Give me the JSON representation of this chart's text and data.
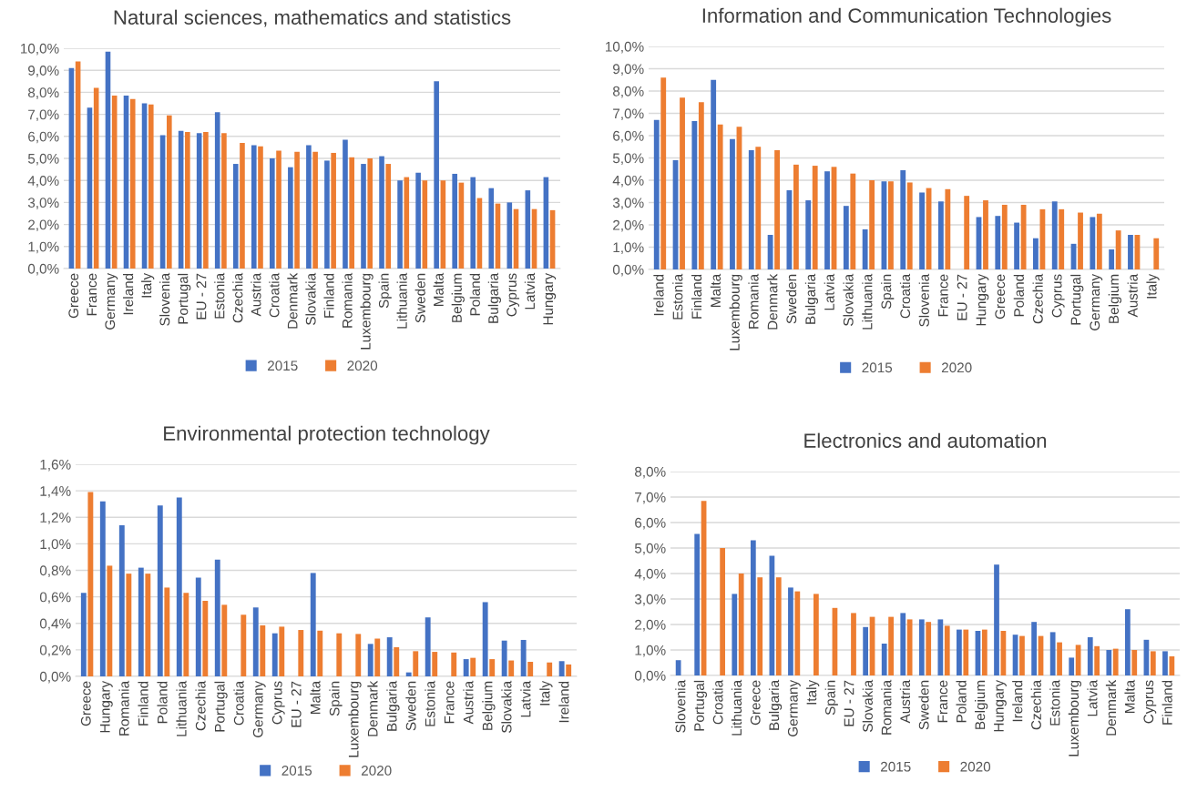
{
  "chart_data": [
    {
      "type": "bar",
      "title": "Natural sciences, mathematics and statistics",
      "categories": [
        "Greece",
        "France",
        "Germany",
        "Ireland",
        "Italy",
        "Slovenia",
        "Portugal",
        "EU - 27",
        "Estonia",
        "Czechia",
        "Austria",
        "Croatia",
        "Denmark",
        "Slovakia",
        "Finland",
        "Romania",
        "Luxembourg",
        "Spain",
        "Lithuania",
        "Sweden",
        "Malta",
        "Belgium",
        "Poland",
        "Bulgaria",
        "Cyprus",
        "Latvia",
        "Hungary"
      ],
      "series": [
        {
          "name": "2015",
          "color": "#4472c4",
          "values": [
            9.1,
            7.3,
            9.85,
            7.85,
            7.5,
            6.05,
            6.25,
            6.15,
            7.1,
            4.75,
            5.6,
            5.0,
            4.6,
            5.6,
            4.9,
            5.85,
            4.75,
            5.1,
            4.0,
            4.35,
            8.5,
            4.3,
            4.15,
            3.65,
            3.0,
            3.55,
            4.15
          ]
        },
        {
          "name": "2020",
          "color": "#ed7d31",
          "values": [
            9.4,
            8.2,
            7.85,
            7.7,
            7.45,
            6.95,
            6.2,
            6.2,
            6.15,
            5.7,
            5.55,
            5.35,
            5.3,
            5.3,
            5.25,
            5.05,
            5.0,
            4.75,
            4.15,
            4.0,
            4.0,
            3.9,
            3.2,
            2.95,
            2.7,
            2.7,
            2.65
          ]
        }
      ],
      "ylim": [
        0,
        10
      ],
      "yticks": [
        {
          "value": 0,
          "label": "0,0%"
        },
        {
          "value": 1,
          "label": "1,0%"
        },
        {
          "value": 2,
          "label": "2,0%"
        },
        {
          "value": 3,
          "label": "3,0%"
        },
        {
          "value": 4,
          "label": "4,0%"
        },
        {
          "value": 5,
          "label": "5,0%"
        },
        {
          "value": 6,
          "label": "6,0%"
        },
        {
          "value": 7,
          "label": "7,0%"
        },
        {
          "value": 8,
          "label": "8,0%"
        },
        {
          "value": 9,
          "label": "9,0%"
        },
        {
          "value": 10,
          "label": "10,0%"
        }
      ],
      "grid": "y",
      "legend": "bottom"
    },
    {
      "type": "bar",
      "title": "Information and Communication Technologies",
      "categories": [
        "Ireland",
        "Estonia",
        "Finland",
        "Malta",
        "Luxembourg",
        "Romania",
        "Denmark",
        "Sweden",
        "Bulgaria",
        "Latvia",
        "Slovakia",
        "Lithuania",
        "Spain",
        "Croatia",
        "Slovenia",
        "France",
        "EU - 27",
        "Hungary",
        "Greece",
        "Poland",
        "Czechia",
        "Cyprus",
        "Portugal",
        "Germany",
        "Belgium",
        "Austria",
        "Italy"
      ],
      "series": [
        {
          "name": "2015",
          "color": "#4472c4",
          "values": [
            6.7,
            4.9,
            6.65,
            8.5,
            5.85,
            5.35,
            1.55,
            3.55,
            3.1,
            4.4,
            2.85,
            1.8,
            3.95,
            4.45,
            3.45,
            3.05,
            null,
            2.35,
            2.4,
            2.1,
            1.4,
            3.05,
            1.15,
            2.35,
            0.9,
            1.55,
            null
          ]
        },
        {
          "name": "2020",
          "color": "#ed7d31",
          "values": [
            8.6,
            7.7,
            7.5,
            6.5,
            6.4,
            5.5,
            5.35,
            4.7,
            4.65,
            4.6,
            4.3,
            4.0,
            3.95,
            3.9,
            3.65,
            3.6,
            3.3,
            3.1,
            2.9,
            2.9,
            2.7,
            2.7,
            2.55,
            2.5,
            1.75,
            1.55,
            1.4
          ]
        }
      ],
      "ylim": [
        0,
        10
      ],
      "yticks": [
        {
          "value": 0,
          "label": "0,0%"
        },
        {
          "value": 1,
          "label": "1,0%"
        },
        {
          "value": 2,
          "label": "2,0%"
        },
        {
          "value": 3,
          "label": "3,0%"
        },
        {
          "value": 4,
          "label": "4,0%"
        },
        {
          "value": 5,
          "label": "5,0%"
        },
        {
          "value": 6,
          "label": "6,0%"
        },
        {
          "value": 7,
          "label": "7,0%"
        },
        {
          "value": 8,
          "label": "8,0%"
        },
        {
          "value": 9,
          "label": "9,0%"
        },
        {
          "value": 10,
          "label": "10,0%"
        }
      ],
      "grid": "y",
      "legend": "bottom"
    },
    {
      "type": "bar",
      "title": "Environmental protection technology",
      "categories": [
        "Greece",
        "Hungary",
        "Romania",
        "Finland",
        "Poland",
        "Lithuania",
        "Czechia",
        "Portugal",
        "Croatia",
        "Germany",
        "Cyprus",
        "EU - 27",
        "Malta",
        "Spain",
        "Luxembourg",
        "Denmark",
        "Bulgaria",
        "Sweden",
        "Estonia",
        "France",
        "Austria",
        "Belgium",
        "Slovakia",
        "Latvia",
        "Italy",
        "Ireland"
      ],
      "series": [
        {
          "name": "2015",
          "color": "#4472c4",
          "values": [
            0.63,
            1.32,
            1.14,
            0.82,
            1.29,
            1.35,
            0.745,
            0.88,
            null,
            0.52,
            0.325,
            null,
            0.78,
            null,
            null,
            0.245,
            0.295,
            0.03,
            0.445,
            null,
            0.13,
            0.56,
            0.27,
            0.275,
            null,
            0.115
          ]
        },
        {
          "name": "2020",
          "color": "#ed7d31",
          "values": [
            1.39,
            0.835,
            0.775,
            0.775,
            0.67,
            0.63,
            0.57,
            0.54,
            0.465,
            0.385,
            0.375,
            0.35,
            0.345,
            0.325,
            0.32,
            0.285,
            0.22,
            0.19,
            0.185,
            0.18,
            0.14,
            0.13,
            0.12,
            0.11,
            0.105,
            0.09
          ]
        }
      ],
      "ylim": [
        0,
        1.6
      ],
      "yticks": [
        {
          "value": 0,
          "label": "0,0%"
        },
        {
          "value": 0.2,
          "label": "0,2%"
        },
        {
          "value": 0.4,
          "label": "0,4%"
        },
        {
          "value": 0.6,
          "label": "0,6%"
        },
        {
          "value": 0.8,
          "label": "0,8%"
        },
        {
          "value": 1.0,
          "label": "1,0%"
        },
        {
          "value": 1.2,
          "label": "1,2%"
        },
        {
          "value": 1.4,
          "label": "1,4%"
        },
        {
          "value": 1.6,
          "label": "1,6%"
        }
      ],
      "grid": "y",
      "legend": "bottom"
    },
    {
      "type": "bar",
      "title": "Electronics and automation",
      "categories": [
        "Slovenia",
        "Portugal",
        "Croatia",
        "Lithuania",
        "Greece",
        "Bulgaria",
        "Germany",
        "Italy",
        "Spain",
        "EU - 27",
        "Slovakia",
        "Romania",
        "Austria",
        "Sweden",
        "France",
        "Poland",
        "Belgium",
        "Hungary",
        "Ireland",
        "Czechia",
        "Estonia",
        "Luxembourg",
        "Latvia",
        "Denmark",
        "Malta",
        "Cyprus",
        "Finland"
      ],
      "series": [
        {
          "name": "2015",
          "color": "#4472c4",
          "values": [
            0.6,
            5.55,
            null,
            3.2,
            5.3,
            4.7,
            3.45,
            null,
            null,
            null,
            1.9,
            1.25,
            2.45,
            2.2,
            2.2,
            1.8,
            1.75,
            4.35,
            1.6,
            2.1,
            1.7,
            0.7,
            1.5,
            1.0,
            2.6,
            1.4,
            0.95
          ]
        },
        {
          "name": "2020",
          "color": "#ed7d31",
          "values": [
            null,
            6.85,
            5.0,
            4.0,
            3.85,
            3.85,
            3.3,
            3.2,
            2.65,
            2.45,
            2.3,
            2.3,
            2.2,
            2.1,
            1.95,
            1.8,
            1.8,
            1.75,
            1.55,
            1.55,
            1.3,
            1.2,
            1.15,
            1.05,
            1.0,
            0.95,
            0.75
          ]
        }
      ],
      "ylim": [
        0,
        8
      ],
      "yticks": [
        {
          "value": 0,
          "label": "0,0%"
        },
        {
          "value": 1,
          "label": "1,0%"
        },
        {
          "value": 2,
          "label": "2,0%"
        },
        {
          "value": 3,
          "label": "3,0%"
        },
        {
          "value": 4,
          "label": "4,0%"
        },
        {
          "value": 5,
          "label": "5,0%"
        },
        {
          "value": 6,
          "label": "6,0%"
        },
        {
          "value": 7,
          "label": "7,0%"
        },
        {
          "value": 8,
          "label": "8,0%"
        }
      ],
      "grid": "y",
      "legend": "bottom"
    }
  ]
}
